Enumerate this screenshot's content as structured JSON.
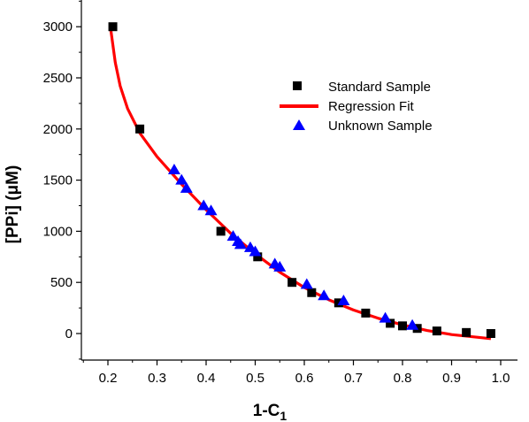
{
  "chart_data": {
    "type": "scatter",
    "xlabel": {
      "main": "1-C",
      "sub": "1"
    },
    "ylabel": "[PPi] (μM)",
    "xlim": [
      0.15,
      1.0
    ],
    "ylim": [
      -250,
      3200
    ],
    "x_ticks": [
      "0.2",
      "0.3",
      "0.4",
      "0.5",
      "0.6",
      "0.7",
      "0.8",
      "0.9",
      "1.0"
    ],
    "y_ticks": [
      "0",
      "500",
      "1000",
      "1500",
      "2000",
      "2500",
      "3000"
    ],
    "grid": false,
    "legend_position": "top-right",
    "series": [
      {
        "name": "Standard Sample",
        "kind": "scatter",
        "marker": "square",
        "color": "#000000",
        "points": [
          [
            0.21,
            3000
          ],
          [
            0.265,
            2000
          ],
          [
            0.43,
            1000
          ],
          [
            0.505,
            750
          ],
          [
            0.575,
            500
          ],
          [
            0.615,
            400
          ],
          [
            0.67,
            300
          ],
          [
            0.725,
            200
          ],
          [
            0.775,
            100
          ],
          [
            0.8,
            75
          ],
          [
            0.83,
            50
          ],
          [
            0.87,
            25
          ],
          [
            0.93,
            10
          ],
          [
            0.98,
            0
          ]
        ]
      },
      {
        "name": "Regression Fit",
        "kind": "line",
        "color": "#ff0000",
        "points": [
          [
            0.205,
            3000
          ],
          [
            0.215,
            2650
          ],
          [
            0.225,
            2420
          ],
          [
            0.24,
            2200
          ],
          [
            0.265,
            1960
          ],
          [
            0.3,
            1730
          ],
          [
            0.35,
            1460
          ],
          [
            0.4,
            1210
          ],
          [
            0.45,
            980
          ],
          [
            0.5,
            780
          ],
          [
            0.55,
            600
          ],
          [
            0.6,
            450
          ],
          [
            0.65,
            330
          ],
          [
            0.7,
            230
          ],
          [
            0.75,
            150
          ],
          [
            0.8,
            85
          ],
          [
            0.85,
            30
          ],
          [
            0.9,
            -10
          ],
          [
            0.95,
            -35
          ],
          [
            0.98,
            -50
          ]
        ]
      },
      {
        "name": "Unknown Sample",
        "kind": "scatter",
        "marker": "triangle",
        "color": "#0000ff",
        "points": [
          [
            0.335,
            1600
          ],
          [
            0.35,
            1500
          ],
          [
            0.36,
            1420
          ],
          [
            0.395,
            1250
          ],
          [
            0.41,
            1200
          ],
          [
            0.455,
            950
          ],
          [
            0.465,
            900
          ],
          [
            0.47,
            870
          ],
          [
            0.49,
            840
          ],
          [
            0.5,
            800
          ],
          [
            0.54,
            680
          ],
          [
            0.55,
            650
          ],
          [
            0.605,
            480
          ],
          [
            0.64,
            370
          ],
          [
            0.68,
            320
          ],
          [
            0.765,
            150
          ],
          [
            0.82,
            80
          ]
        ]
      }
    ]
  }
}
